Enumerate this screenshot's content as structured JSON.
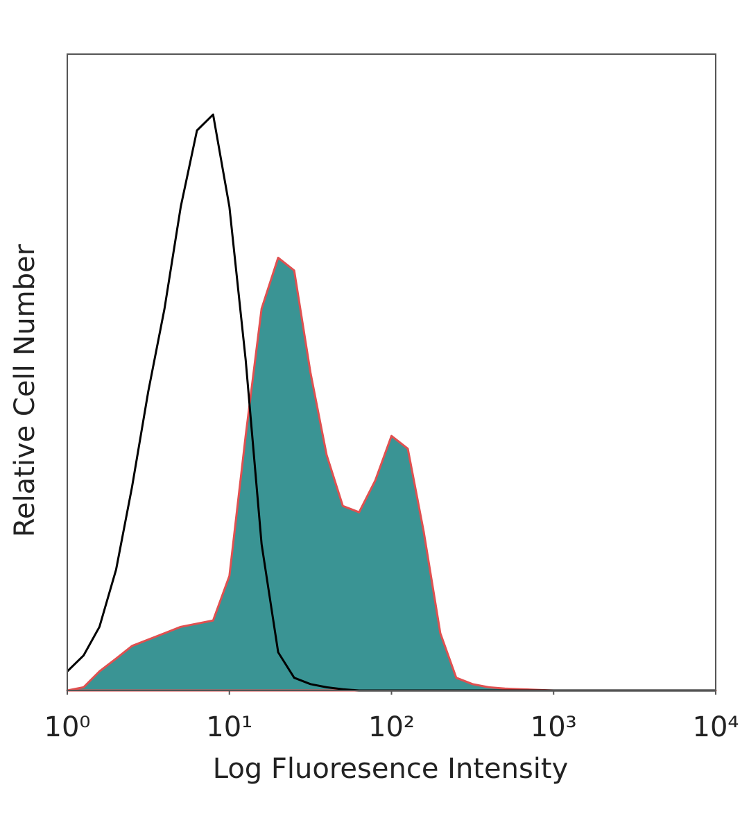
{
  "chart_data": {
    "type": "histogram-overlay",
    "xlabel": "Log Fluoresence Intensity",
    "ylabel": "Relative Cell Number",
    "xscale": "log",
    "xlim": [
      1,
      10000
    ],
    "ylim": [
      0,
      100
    ],
    "xticks": [
      {
        "value": 1,
        "label": "10⁰"
      },
      {
        "value": 10,
        "label": "10¹"
      },
      {
        "value": 100,
        "label": "10²"
      },
      {
        "value": 1000,
        "label": "10³"
      },
      {
        "value": 10000,
        "label": "10⁴"
      }
    ],
    "x": [
      1,
      1.26,
      1.58,
      2,
      2.51,
      3.16,
      3.98,
      5.01,
      6.31,
      7.94,
      10,
      12.6,
      15.8,
      20,
      25.1,
      31.6,
      39.8,
      50.1,
      63.1,
      79.4,
      100,
      126,
      158,
      200,
      251,
      316,
      398,
      501,
      631,
      794,
      1000,
      1259,
      1585,
      1995,
      2512,
      3162,
      3981,
      5012,
      6310,
      7943,
      10000
    ],
    "series": [
      {
        "color": "#3a9494",
        "edge_color": "#e05050",
        "filled": true,
        "values": [
          0,
          0.5,
          3,
          5,
          7,
          8,
          9,
          10,
          10.5,
          11,
          18,
          40,
          60,
          68,
          66,
          50,
          37,
          29,
          28,
          33,
          40,
          38,
          25,
          9,
          2,
          1,
          0.5,
          0.3,
          0.2,
          0.1,
          0,
          0,
          0,
          0,
          0,
          0,
          0,
          0,
          0,
          0,
          0
        ]
      },
      {
        "color": "#000000",
        "filled": false,
        "values": [
          3,
          5.5,
          10,
          19,
          32,
          47,
          60,
          76,
          88,
          90.5,
          76,
          52,
          23,
          6,
          2,
          1,
          0.5,
          0.2,
          0,
          0,
          0,
          0,
          0,
          0,
          0,
          0,
          0,
          0,
          0,
          0,
          0,
          0,
          0,
          0,
          0,
          0,
          0,
          0,
          0,
          0,
          0
        ]
      }
    ]
  }
}
